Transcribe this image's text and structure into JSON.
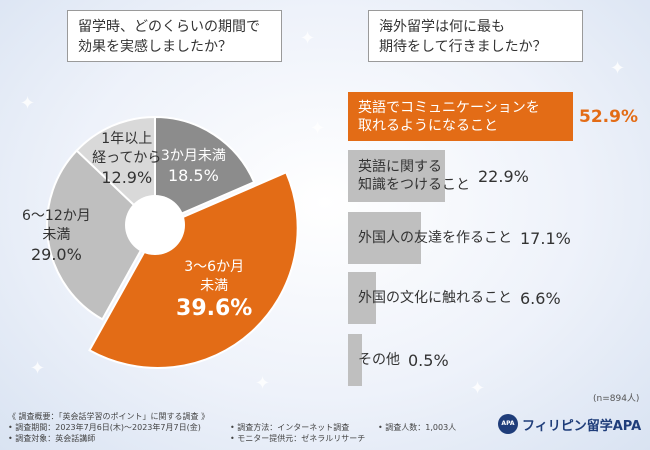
{
  "questions": {
    "q1": [
      "留学時、どのくらいの期間で",
      "効果を実感しましたか？"
    ],
    "q2": [
      "海外留学は何に最も",
      "期待をして行きましたか？"
    ]
  },
  "chart_data": [
    {
      "type": "pie",
      "title": "留学時、どのくらいの期間で効果を実感しましたか？",
      "slices": [
        {
          "label": [
            "3か月未満"
          ],
          "value": 18.5,
          "value_text": "18.5%",
          "color": "#8c8c8c",
          "text_color": "#ffffff"
        },
        {
          "label": [
            "3〜6か月",
            "未満"
          ],
          "value": 39.6,
          "value_text": "39.6%",
          "color": "#e36c16",
          "text_color": "#ffffff"
        },
        {
          "label": [
            "6〜12か月",
            "未満"
          ],
          "value": 29.0,
          "value_text": "29.0%",
          "color": "#bfbfbf",
          "text_color": "#333333"
        },
        {
          "label": [
            "1年以上",
            "経ってから"
          ],
          "value": 12.9,
          "value_text": "12.9%",
          "color": "#d9d9d9",
          "text_color": "#333333"
        }
      ]
    },
    {
      "type": "bar",
      "orientation": "horizontal",
      "title": "海外留学は何に最も期待をして行きましたか？",
      "xlim": [
        0,
        60
      ],
      "bars": [
        {
          "label": [
            "英語でコミュニケーションを",
            "取れるようになること"
          ],
          "value": 52.9,
          "value_text": "52.9%",
          "highlight": true
        },
        {
          "label": [
            "英語に関する",
            "知識をつけること"
          ],
          "value": 22.9,
          "value_text": "22.9%",
          "highlight": false
        },
        {
          "label": [
            "外国人の友達を作ること"
          ],
          "value": 17.1,
          "value_text": "17.1%",
          "highlight": false
        },
        {
          "label": [
            "外国の文化に触れること"
          ],
          "value": 6.6,
          "value_text": "6.6%",
          "highlight": false
        },
        {
          "label": [
            "その他"
          ],
          "value": 0.5,
          "value_text": "0.5%",
          "highlight": false
        }
      ],
      "note": "(n=894人)"
    }
  ],
  "footer": {
    "line1": "《 調査概要：「英会話学習のポイント」に関する調査 》",
    "line2": "• 調査期間：2023年7月6日(木)〜2023年7月7日(金)",
    "line3": "• 調査対象：英会話講師",
    "method": "• 調査方法：インターネット調査",
    "monitor": "• モニター提供元：ゼネラルリサーチ",
    "count": "• 調査人数：1,003人"
  },
  "logo": {
    "mark": "APA",
    "text": "フィリピン留学APA",
    "color": "#1f3d7a"
  }
}
